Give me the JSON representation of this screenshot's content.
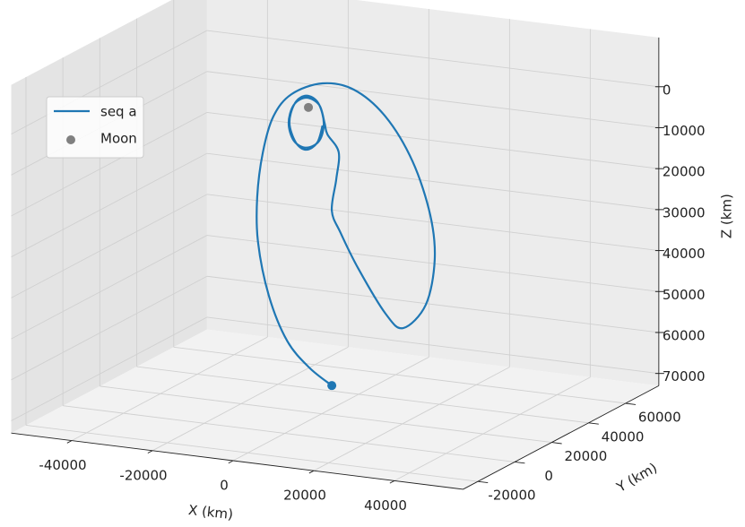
{
  "chart_data": {
    "type": "line3d",
    "xlabel": "X (km)",
    "ylabel": "Y (km)",
    "zlabel": "Z (km)",
    "xlim": [
      -55000,
      57000
    ],
    "ylim": [
      -28000,
      78000
    ],
    "zlim": [
      73000,
      -12000
    ],
    "xticks": [
      -40000,
      -20000,
      0,
      20000,
      40000
    ],
    "yticks": [
      -20000,
      0,
      20000,
      40000,
      60000
    ],
    "zticks": [
      0,
      10000,
      20000,
      30000,
      40000,
      50000,
      60000,
      70000
    ],
    "grid": true,
    "legend": "upper left",
    "series": [
      {
        "name": "seq a",
        "color": "#1f77b4",
        "x": [
          2500,
          -3100,
          -8600,
          -13100,
          -15800,
          -16000,
          -14600,
          -12000,
          -7500,
          200,
          8000,
          15800,
          22500,
          26900,
          28000,
          25800,
          20200,
          15800,
          9100,
          4700,
          2500,
          3600,
          4200,
          1400,
          700,
          -600,
          -3800,
          -6900,
          -8200,
          -6900,
          -3800,
          -600,
          500,
          -900,
          -3800,
          -6600,
          -8000,
          -6400,
          -3800,
          -1100,
          200
        ],
        "y": [
          20000,
          20000,
          20000,
          20000,
          20000,
          20000,
          20000,
          20000,
          20000,
          20000,
          20000,
          20000,
          20000,
          20000,
          20000,
          20000,
          20000,
          20000,
          20000,
          20000,
          20000,
          20000,
          20000,
          20000,
          20000,
          20000,
          20000,
          20000,
          20000,
          20000,
          20000,
          20000,
          20000,
          20000,
          20000,
          20000,
          20000,
          20000,
          20000,
          20000,
          20000
        ],
        "z": [
          65800,
          62100,
          56200,
          45800,
          33000,
          22100,
          11000,
          1900,
          -4100,
          -7700,
          -7100,
          -1500,
          8600,
          21200,
          32000,
          43200,
          49600,
          46600,
          36500,
          28300,
          23100,
          15300,
          8600,
          4600,
          1900,
          -2300,
          -3700,
          -1600,
          3000,
          7200,
          8500,
          6400,
          1900,
          -2800,
          -4200,
          -2100,
          2900,
          7600,
          9000,
          6900,
          2600
        ]
      },
      {
        "name": "Moon",
        "type": "scatter",
        "color": "#808080",
        "x": [
          -3300
        ],
        "y": [
          20000
        ],
        "z": [
          -1400
        ]
      }
    ]
  }
}
